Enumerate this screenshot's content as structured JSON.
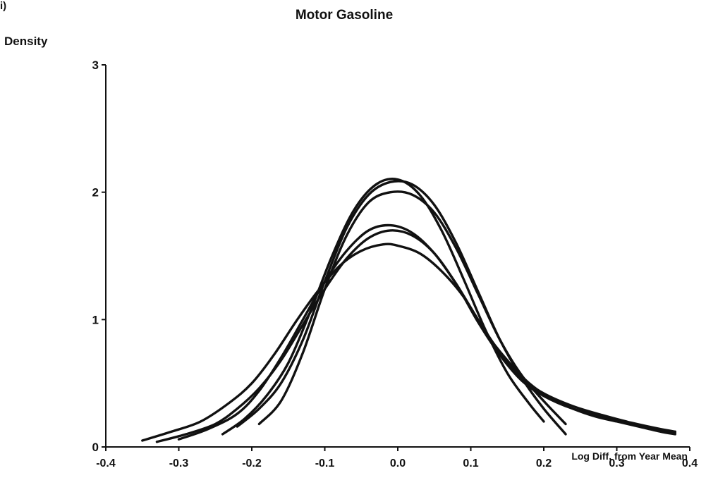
{
  "panel_label": "i)",
  "chart_data": {
    "type": "line",
    "title": "Motor Gasoline",
    "ylabel": "Density",
    "xlabel": "Log Diff. from Year Mean",
    "xlim": [
      -0.4,
      0.4
    ],
    "ylim": [
      0,
      3
    ],
    "xticks": [
      "-0.4",
      "-0.3",
      "-0.2",
      "-0.1",
      "0.0",
      "0.1",
      "0.2",
      "0.3",
      "0.4"
    ],
    "yticks": [
      "0",
      "1",
      "2",
      "3"
    ],
    "grid": false,
    "series": [
      {
        "x": [
          -0.35,
          -0.31,
          -0.27,
          -0.23,
          -0.2,
          -0.17,
          -0.14,
          -0.11,
          -0.08,
          -0.05,
          -0.02,
          0.0,
          0.03,
          0.06,
          0.09,
          0.12,
          0.15,
          0.18,
          0.21,
          0.24,
          0.27,
          0.3,
          0.33,
          0.36,
          0.38
        ],
        "y": [
          0.05,
          0.12,
          0.2,
          0.35,
          0.5,
          0.72,
          0.98,
          1.22,
          1.42,
          1.54,
          1.59,
          1.58,
          1.52,
          1.38,
          1.18,
          0.9,
          0.68,
          0.5,
          0.38,
          0.3,
          0.24,
          0.2,
          0.16,
          0.12,
          0.1
        ]
      },
      {
        "x": [
          -0.33,
          -0.29,
          -0.25,
          -0.22,
          -0.19,
          -0.16,
          -0.13,
          -0.1,
          -0.07,
          -0.04,
          -0.01,
          0.02,
          0.05,
          0.08,
          0.11,
          0.14,
          0.17,
          0.2,
          0.24,
          0.28,
          0.32,
          0.36,
          0.38
        ],
        "y": [
          0.04,
          0.1,
          0.18,
          0.3,
          0.46,
          0.68,
          0.96,
          1.24,
          1.48,
          1.64,
          1.7,
          1.66,
          1.52,
          1.28,
          0.98,
          0.72,
          0.52,
          0.4,
          0.3,
          0.24,
          0.18,
          0.13,
          0.11
        ]
      },
      {
        "x": [
          -0.3,
          -0.26,
          -0.22,
          -0.19,
          -0.16,
          -0.13,
          -0.1,
          -0.07,
          -0.04,
          -0.01,
          0.02,
          0.05,
          0.08,
          0.11,
          0.14,
          0.17,
          0.2,
          0.24,
          0.28,
          0.32,
          0.36,
          0.38
        ],
        "y": [
          0.06,
          0.14,
          0.26,
          0.44,
          0.7,
          1.0,
          1.3,
          1.54,
          1.7,
          1.74,
          1.68,
          1.52,
          1.28,
          1.0,
          0.74,
          0.54,
          0.42,
          0.32,
          0.25,
          0.19,
          0.14,
          0.12
        ]
      },
      {
        "x": [
          -0.24,
          -0.21,
          -0.18,
          -0.15,
          -0.12,
          -0.09,
          -0.06,
          -0.03,
          0.0,
          0.03,
          0.06,
          0.09,
          0.12,
          0.15,
          0.18,
          0.2
        ],
        "y": [
          0.1,
          0.22,
          0.4,
          0.66,
          1.06,
          1.5,
          1.86,
          2.06,
          2.1,
          1.98,
          1.7,
          1.32,
          0.92,
          0.58,
          0.34,
          0.2
        ]
      },
      {
        "x": [
          -0.22,
          -0.19,
          -0.16,
          -0.13,
          -0.1,
          -0.07,
          -0.04,
          -0.01,
          0.02,
          0.05,
          0.08,
          0.11,
          0.14,
          0.17,
          0.2,
          0.23
        ],
        "y": [
          0.16,
          0.3,
          0.5,
          0.84,
          1.3,
          1.72,
          1.98,
          2.08,
          2.06,
          1.9,
          1.6,
          1.22,
          0.84,
          0.54,
          0.3,
          0.1
        ]
      },
      {
        "x": [
          -0.19,
          -0.16,
          -0.13,
          -0.1,
          -0.07,
          -0.04,
          -0.01,
          0.02,
          0.05,
          0.08,
          0.11,
          0.14,
          0.17,
          0.2,
          0.23
        ],
        "y": [
          0.18,
          0.36,
          0.74,
          1.24,
          1.66,
          1.92,
          2.0,
          1.98,
          1.84,
          1.56,
          1.2,
          0.84,
          0.56,
          0.36,
          0.18
        ]
      }
    ]
  }
}
